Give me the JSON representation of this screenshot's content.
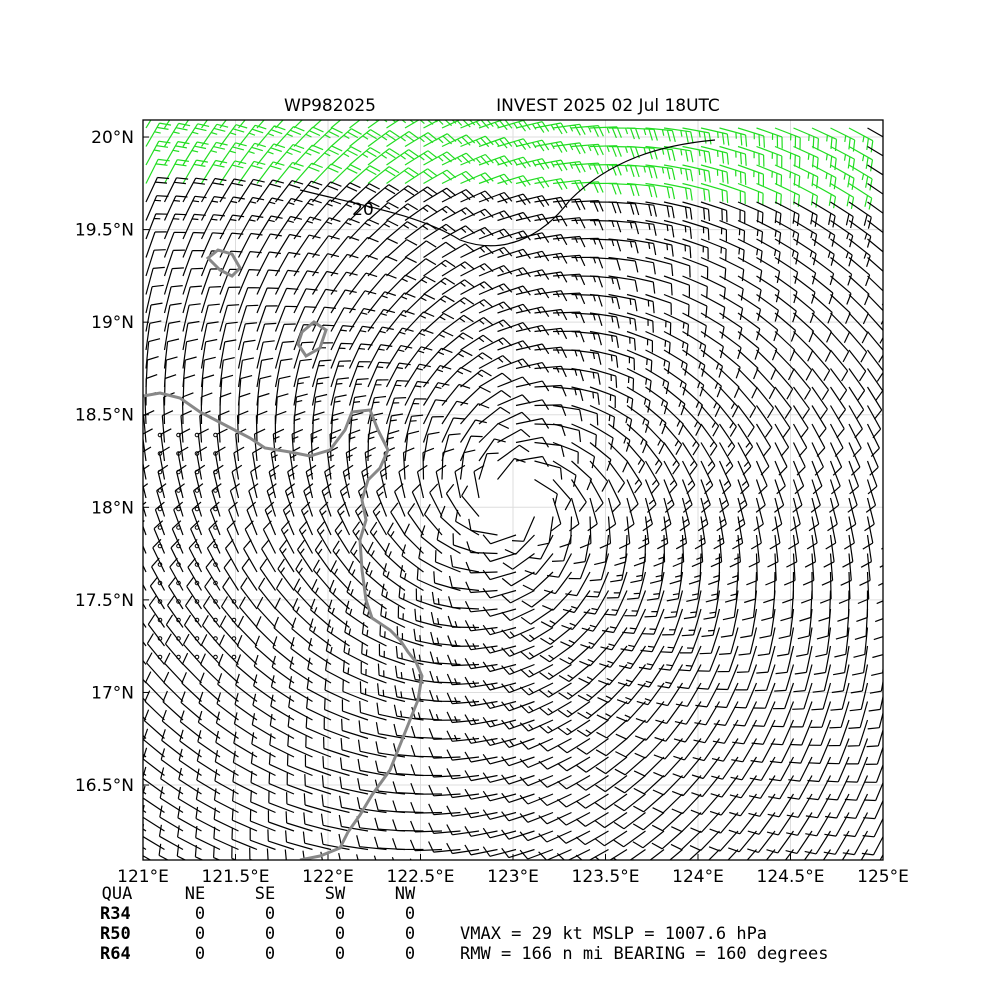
{
  "title_left": "WP982025",
  "title_right": "INVEST 2025 02 Jul 18UTC",
  "xlim": [
    121,
    125.0
  ],
  "ylim": [
    16.095,
    20.092
  ],
  "xticks": [
    {
      "value": 121,
      "label": "121°E"
    },
    {
      "value": 121.5,
      "label": "121.5°E"
    },
    {
      "value": 122,
      "label": "122°E"
    },
    {
      "value": 122.5,
      "label": "122.5°E"
    },
    {
      "value": 123,
      "label": "123°E"
    },
    {
      "value": 123.5,
      "label": "123.5°E"
    },
    {
      "value": 124,
      "label": "124°E"
    },
    {
      "value": 124.5,
      "label": "124.5°E"
    },
    {
      "value": 125,
      "label": "125°E"
    }
  ],
  "yticks": [
    {
      "value": 16.5,
      "label": "16.5°N"
    },
    {
      "value": 17,
      "label": "17°N"
    },
    {
      "value": 17.5,
      "label": "17.5°N"
    },
    {
      "value": 18,
      "label": "18°N"
    },
    {
      "value": 18.5,
      "label": "18.5°N"
    },
    {
      "value": 19,
      "label": "19°N"
    },
    {
      "value": 19.5,
      "label": "19.5°N"
    },
    {
      "value": 20,
      "label": "20°N"
    }
  ],
  "contour_label": "20",
  "table": {
    "header": [
      "QUA",
      "NE",
      "SE",
      "SW",
      "NW"
    ],
    "rows": [
      [
        "R34",
        "0",
        "0",
        "0",
        "0"
      ],
      [
        "R50",
        "0",
        "0",
        "0",
        "0"
      ],
      [
        "R64",
        "0",
        "0",
        "0",
        "0"
      ]
    ]
  },
  "info": [
    "VMAX =  29 kt MSLP = 1007.6 hPa",
    "RMW = 166 n mi BEARING = 160 degrees"
  ]
}
